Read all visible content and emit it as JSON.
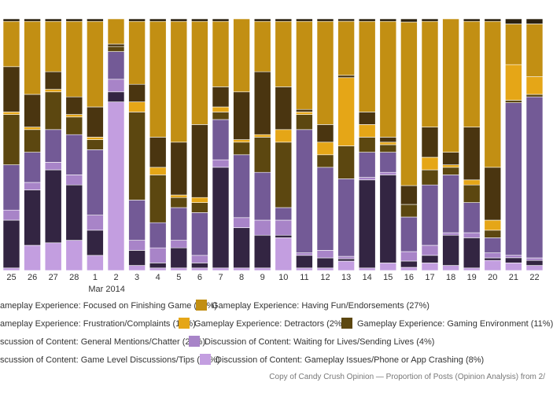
{
  "chart_data": {
    "type": "bar",
    "stacked": true,
    "normalized": true,
    "caption": "Copy of Candy Crush Opinion — Proportion of Posts (Opinion Analysis) from 2/",
    "categories": [
      "25",
      "26",
      "27",
      "28",
      "1",
      "2",
      "3",
      "4",
      "5",
      "6",
      "7",
      "8",
      "9",
      "10",
      "11",
      "12",
      "13",
      "14",
      "15",
      "16",
      "17",
      "18",
      "19",
      "20",
      "21",
      "22"
    ],
    "month_label": {
      "text": "Mar 2014",
      "category": "1"
    },
    "ylim": [
      0,
      100
    ],
    "stack_order_bottom_to_top": [
      "Discussion of Content: Gameplay Issues/Phone or App Crashing (8%)",
      "Discussion of Content: Game Level Discussions/Tips (15%)",
      "Discussion of Content: Waiting for Lives/Sending Lives (4%)",
      "Discussion of Content: General Mentions/Chatter (22%)",
      "Gameplay Experience: Gaming Environment (11%)",
      "Gameplay Experience: Detractors (2%)",
      "Gameplay Experience: Frustration/Complaints (12%)",
      "Gameplay Experience: Having Fun/Endorsements (27%)",
      "Gameplay Experience: Focused on Finishing Game (<1%)"
    ],
    "series": [
      {
        "name": "Discussion of Content: Gameplay Issues/Phone or App Crashing (8%)",
        "color": "#c39ee0",
        "values": [
          1,
          10,
          11,
          12,
          6,
          67,
          2,
          1,
          1,
          1,
          1,
          1,
          1,
          13,
          1,
          1,
          4,
          1,
          3,
          1,
          3,
          2,
          1,
          4,
          3,
          2
        ]
      },
      {
        "name": "Discussion of Content: Game Level Discussions/Tips (15%)",
        "color": "#332542",
        "values": [
          19,
          22,
          29,
          22,
          10,
          4,
          6,
          2,
          8,
          2,
          40,
          16,
          13,
          1,
          5,
          4,
          1,
          35,
          35,
          2,
          3,
          12,
          12,
          1,
          2,
          2
        ]
      },
      {
        "name": "Discussion of Content: Waiting for Lives/Sending Lives (4%)",
        "color": "#a884c8",
        "values": [
          4,
          3,
          3,
          4,
          6,
          5,
          4,
          6,
          3,
          3,
          3,
          4,
          6,
          6,
          1,
          3,
          1,
          1,
          1,
          3,
          4,
          1,
          2,
          2,
          1,
          1
        ]
      },
      {
        "name": "Discussion of Content: General Mentions/Chatter (22%)",
        "color": "#735a96",
        "values": [
          18,
          12,
          13,
          16,
          26,
          11,
          16,
          10,
          13,
          17,
          16,
          25,
          19,
          5,
          49,
          33,
          33,
          10,
          8,
          11,
          24,
          23,
          12,
          6,
          60,
          64
        ]
      },
      {
        "name": "Gameplay Experience: Gaming Environment (11%)",
        "color": "#5c4710",
        "values": [
          20,
          9,
          15,
          7,
          4,
          2,
          35,
          19,
          4,
          4,
          3,
          5,
          14,
          26,
          6,
          5,
          14,
          6,
          3,
          4,
          6,
          3,
          7,
          3,
          1,
          1
        ]
      },
      {
        "name": "Gameplay Experience: Detractors (2%)",
        "color": "#e5a617",
        "values": [
          1,
          1,
          1,
          1,
          1,
          0,
          4,
          3,
          1,
          2,
          2,
          1,
          1,
          5,
          1,
          5,
          29,
          5,
          1,
          0,
          5,
          1,
          2,
          4,
          14,
          7
        ]
      },
      {
        "name": "Gameplay Experience: Frustration/Complaints (12%)",
        "color": "#4a3510",
        "values": [
          18,
          13,
          7,
          7,
          12,
          1,
          7,
          12,
          21,
          29,
          8,
          19,
          25,
          17,
          1,
          7,
          1,
          5,
          2,
          6,
          12,
          5,
          21,
          21,
          0,
          0
        ]
      },
      {
        "name": "Gameplay Experience: Having Fun/Endorsements (27%)",
        "color": "#c28f13",
        "values": [
          18,
          29,
          20,
          30,
          34,
          10,
          25,
          46,
          48,
          41,
          26,
          29,
          20,
          26,
          35,
          41,
          23,
          36,
          46,
          52,
          42,
          53,
          42,
          58,
          16,
          21
        ]
      },
      {
        "name": "Gameplay Experience: Focused on Finishing Game (<1%)",
        "color": "#2b2110",
        "values": [
          1,
          1,
          1,
          1,
          1,
          0,
          1,
          1,
          1,
          1,
          1,
          0,
          1,
          1,
          1,
          1,
          1,
          1,
          1,
          1,
          1,
          0,
          1,
          1,
          2,
          2
        ]
      }
    ]
  },
  "legend": {
    "rows": [
      [
        {
          "label": "ameplay Experience: Focused on Finishing Game (<1%)",
          "color": "#2b2110",
          "swatch": false
        },
        {
          "label": "Gameplay Experience: Having Fun/Endorsements (27%)",
          "color": "#c28f13",
          "swatch": true
        }
      ],
      [
        {
          "label": "ameplay Experience: Frustration/Complaints (12%)",
          "color": "#4a3510",
          "swatch": false
        },
        {
          "label": "Gameplay Experience: Detractors (2%)",
          "color": "#e5a617",
          "swatch": true
        },
        {
          "label": "Gameplay Experience: Gaming Environment (11%)",
          "color": "#5c4710",
          "swatch": true
        }
      ],
      [
        {
          "label": "scussion of Content: General Mentions/Chatter (22%)",
          "color": "#735a96",
          "swatch": false
        },
        {
          "label": "Discussion of Content: Waiting for Lives/Sending Lives (4%)",
          "color": "#a884c8",
          "swatch": true
        }
      ],
      [
        {
          "label": "scussion of Content: Game Level Discussions/Tips (15%)",
          "color": "#332542",
          "swatch": false
        },
        {
          "label": "Discussion of Content: Gameplay Issues/Phone or App Crashing (8%)",
          "color": "#c39ee0",
          "swatch": true
        }
      ]
    ]
  }
}
